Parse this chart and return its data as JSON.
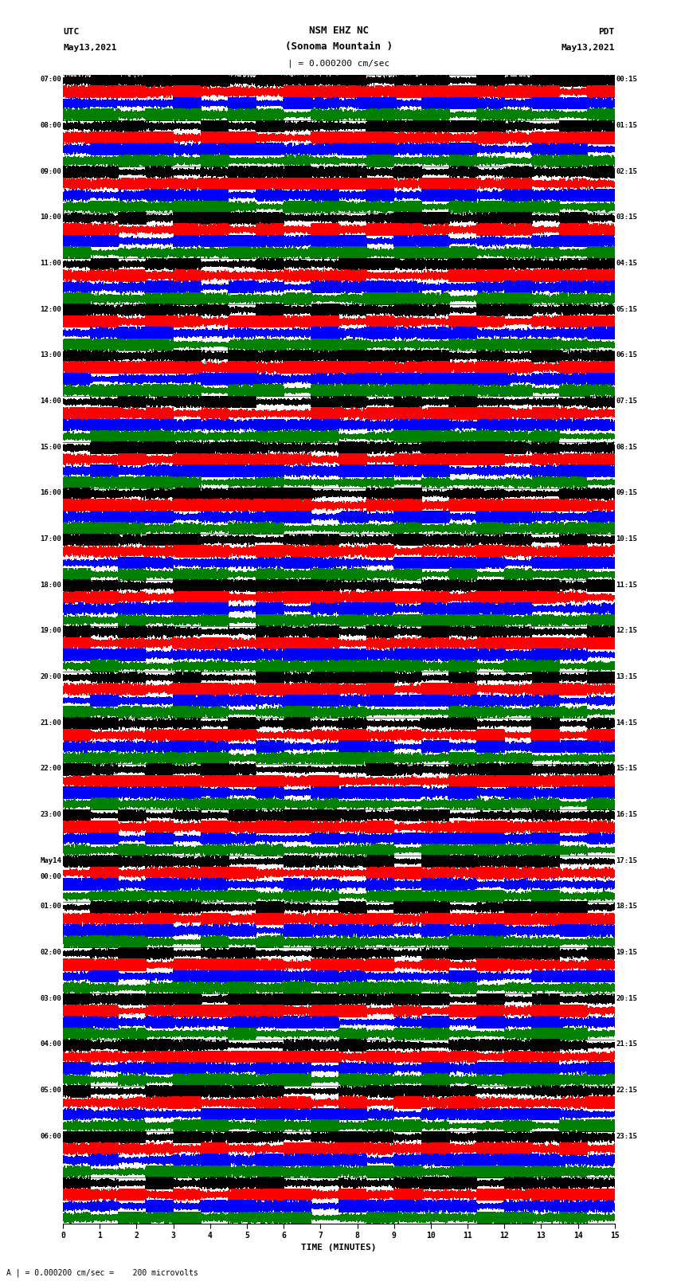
{
  "title_line1": "NSM EHZ NC",
  "title_line2": "(Sonoma Mountain )",
  "title_scale": "| = 0.000200 cm/sec",
  "left_header_line1": "UTC",
  "left_header_line2": "May13,2021",
  "right_header_line1": "PDT",
  "right_header_line2": "May13,2021",
  "xlabel": "TIME (MINUTES)",
  "footer": "A | = 0.000200 cm/sec =    200 microvolts",
  "utc_labels": [
    "07:00",
    "08:00",
    "09:00",
    "10:00",
    "11:00",
    "12:00",
    "13:00",
    "14:00",
    "15:00",
    "16:00",
    "17:00",
    "18:00",
    "19:00",
    "20:00",
    "21:00",
    "22:00",
    "23:00",
    "May14\n00:00",
    "01:00",
    "02:00",
    "03:00",
    "04:00",
    "05:00",
    "06:00"
  ],
  "utc_labels_display": [
    "07:00",
    "08:00",
    "09:00",
    "10:00",
    "11:00",
    "12:00",
    "13:00",
    "14:00",
    "15:00",
    "16:00",
    "17:00",
    "18:00",
    "19:00",
    "20:00",
    "21:00",
    "22:00",
    "23:00",
    "May14",
    "01:00",
    "02:00",
    "03:00",
    "04:00",
    "05:00",
    "06:00"
  ],
  "pdt_labels": [
    "00:15",
    "01:15",
    "02:15",
    "03:15",
    "04:15",
    "05:15",
    "06:15",
    "07:15",
    "08:15",
    "09:15",
    "10:15",
    "11:15",
    "12:15",
    "13:15",
    "14:15",
    "15:15",
    "16:15",
    "17:15",
    "18:15",
    "19:15",
    "20:15",
    "21:15",
    "22:15",
    "23:15"
  ],
  "colors": [
    "black",
    "red",
    "blue",
    "green"
  ],
  "bg_color": "white",
  "trace_duration_minutes": 15,
  "num_rows": 25,
  "traces_per_row": 4,
  "fig_width": 8.5,
  "fig_height": 16.13,
  "dpi": 100
}
